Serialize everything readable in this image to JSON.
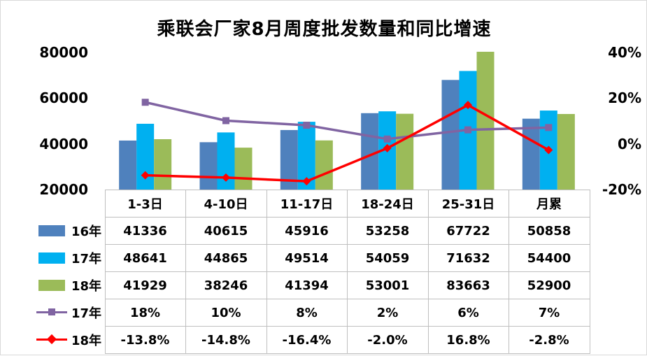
{
  "chart_data": {
    "type": "bar+line",
    "title": "乘联会厂家8月周度批发数量和同比增速",
    "categories": [
      "1-3日",
      "4-10日",
      "11-17日",
      "18-24日",
      "25-31日",
      "月累"
    ],
    "left_axis": {
      "ylim": [
        20000,
        80000
      ],
      "ticks": [
        "20000",
        "40000",
        "60000",
        "80000"
      ]
    },
    "right_axis": {
      "ylim": [
        -0.2,
        0.4
      ],
      "ticks": [
        "-20%",
        "0%",
        "20%",
        "40%"
      ]
    },
    "bar_series": [
      {
        "name": "16年",
        "color": "#4f81bd",
        "values": [
          41336,
          40615,
          45916,
          53258,
          67722,
          50858
        ],
        "labels": [
          "41336",
          "40615",
          "45916",
          "53258",
          "67722",
          "50858"
        ]
      },
      {
        "name": "17年",
        "color": "#00b0f0",
        "values": [
          48641,
          44865,
          49514,
          54059,
          71632,
          54400
        ],
        "labels": [
          "48641",
          "44865",
          "49514",
          "54059",
          "71632",
          "54400"
        ]
      },
      {
        "name": "18年",
        "color": "#9bbb59",
        "values": [
          41929,
          38246,
          41394,
          53001,
          83663,
          52900
        ],
        "labels": [
          "41929",
          "38246",
          "41394",
          "53001",
          "83663",
          "52900"
        ]
      }
    ],
    "line_series": [
      {
        "name": "17年",
        "color": "#8064a2",
        "marker": "square",
        "values": [
          0.18,
          0.1,
          0.08,
          0.02,
          0.06,
          0.07
        ],
        "labels": [
          "18%",
          "10%",
          "8%",
          "2%",
          "6%",
          "7%"
        ]
      },
      {
        "name": "18年",
        "color": "#ff0000",
        "marker": "diamond",
        "values": [
          -0.138,
          -0.148,
          -0.164,
          -0.02,
          0.168,
          -0.028
        ],
        "labels": [
          "-13.8%",
          "-14.8%",
          "-16.4%",
          "-2.0%",
          "16.8%",
          "-2.8%"
        ]
      }
    ],
    "legend": "data-table"
  }
}
